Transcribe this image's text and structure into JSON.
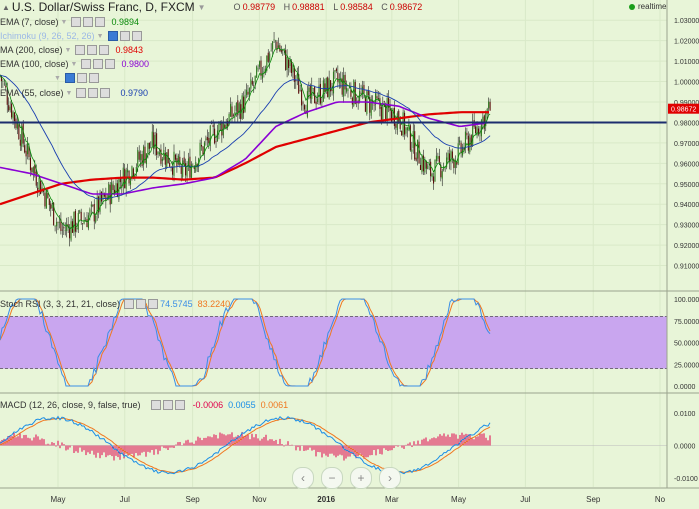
{
  "header": {
    "title": "U.S. Dollar/Swiss Franc, D, FXCM",
    "ohlc": [
      {
        "k": "O",
        "v": "0.98779"
      },
      {
        "k": "H",
        "v": "0.98881"
      },
      {
        "k": "L",
        "v": "0.98584"
      },
      {
        "k": "C",
        "v": "0.98672"
      }
    ],
    "realtime": "realtime"
  },
  "indicators": [
    {
      "label": "EMA (7, close)",
      "value": "0.9894",
      "color": "#0a8a0a"
    },
    {
      "label": "Ichimoku (9, 26, 52, 26)",
      "value": "",
      "color": "#7b9bd5"
    },
    {
      "label": "MA (200, close)",
      "value": "0.9843",
      "color": "#e00000"
    },
    {
      "label": "EMA (100, close)",
      "value": "0.9800",
      "color": "#8a00d4"
    },
    {
      "label": "",
      "value": "",
      "color": "#9cb0e0"
    },
    {
      "label": "EMA (55, close)",
      "value": "0.9790",
      "color": "#1a3fb0"
    }
  ],
  "price_axis": [
    "1.03000",
    "1.02000",
    "1.01000",
    "1.00000",
    "0.99000",
    "0.98000",
    "0.97000",
    "0.96000",
    "0.95000",
    "0.94000",
    "0.93000",
    "0.92000",
    "0.91000"
  ],
  "last_price": "0.98672",
  "hline_value": 0.98,
  "stoch": {
    "label": "Stoch RSI (3, 3, 21, 21, close)",
    "k_value": "74.5745",
    "d_value": "83.2240",
    "k_color": "#3a8ee6",
    "d_color": "#f07820",
    "axis": [
      "100.0000",
      "75.0000",
      "50.0000",
      "25.0000",
      "0.0000"
    ]
  },
  "macd": {
    "label": "MACD (12, 26, close, 9, false, true)",
    "hist": "-0.0006",
    "macd": "0.0055",
    "signal": "0.0061",
    "axis": [
      "0.0100",
      "0.0000",
      "-0.0100"
    ]
  },
  "time_axis": [
    "May",
    "Jul",
    "Sep",
    "Nov",
    "2016",
    "Mar",
    "May",
    "Jul",
    "Sep",
    "No"
  ],
  "nav_buttons": [
    "‹",
    "−",
    "+",
    "›"
  ],
  "chart_data": {
    "type": "line",
    "x": [
      "2015-03-09",
      "2015-04-06",
      "2015-05-04",
      "2015-06-01",
      "2015-06-29",
      "2015-07-27",
      "2015-08-24",
      "2015-09-21",
      "2015-10-19",
      "2015-11-16",
      "2015-12-14",
      "2016-01-11",
      "2016-02-08",
      "2016-03-07",
      "2016-04-04",
      "2016-05-02",
      "2016-05-30"
    ],
    "series": [
      {
        "name": "U.S. Dollar/Swiss Franc",
        "values": [
          1.003,
          0.96,
          0.927,
          0.935,
          0.953,
          0.97,
          0.955,
          0.975,
          0.99,
          1.02,
          0.99,
          1.0,
          0.99,
          0.983,
          0.955,
          0.965,
          0.987
        ]
      },
      {
        "name": "MA (200, close)",
        "values": [
          0.94,
          0.945,
          0.95,
          0.952,
          0.953,
          0.953,
          0.952,
          0.953,
          0.96,
          0.968,
          0.972,
          0.976,
          0.98,
          0.982,
          0.984,
          0.985,
          0.985
        ]
      },
      {
        "name": "EMA (100, close)",
        "values": [
          0.958,
          0.955,
          0.95,
          0.945,
          0.945,
          0.948,
          0.95,
          0.953,
          0.962,
          0.978,
          0.985,
          0.99,
          0.99,
          0.988,
          0.982,
          0.978,
          0.98
        ]
      }
    ],
    "ylim": [
      0.9,
      1.035
    ],
    "hline": 0.98
  }
}
